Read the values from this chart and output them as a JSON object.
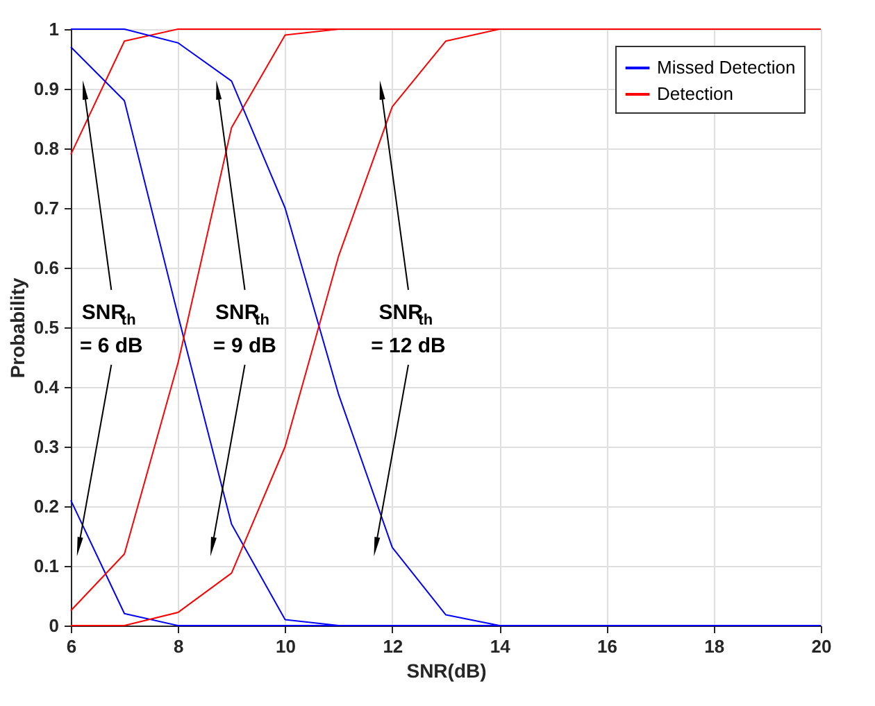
{
  "chart_data": {
    "type": "line",
    "xlabel": "SNR(dB)",
    "ylabel": "Probability",
    "x": [
      6,
      7,
      8,
      9,
      10,
      11,
      12,
      13,
      14,
      15,
      16,
      17,
      18,
      19,
      20
    ],
    "xlim": [
      6,
      20
    ],
    "xticks": [
      6,
      8,
      10,
      12,
      14,
      16,
      18,
      20
    ],
    "ylim": [
      0,
      1
    ],
    "yticks": [
      0,
      0.1,
      0.2,
      0.3,
      0.4,
      0.5,
      0.6,
      0.7,
      0.8,
      0.9,
      1
    ],
    "grid": true,
    "legend": "top right",
    "marker": "none",
    "line_style": "solid",
    "series": [
      {
        "name": "Missed Detection",
        "color": "#0000ff",
        "values": [
          0.21,
          0.02,
          0,
          0,
          0,
          0,
          0,
          0,
          0,
          0,
          0,
          0,
          0,
          0,
          0
        ]
      },
      {
        "name": "Detection",
        "color": "#ff0000",
        "values": [
          0.79,
          0.98,
          1,
          1,
          1,
          1,
          1,
          1,
          1,
          1,
          1,
          1,
          1,
          1,
          1
        ]
      },
      {
        "color": "#0000ff",
        "values": [
          0.97,
          0.88,
          0.52,
          0.17,
          0.01,
          0,
          0,
          0,
          0,
          0,
          0,
          0,
          0,
          0,
          0
        ]
      },
      {
        "color": "#ff0000",
        "values": [
          0.025,
          0.12,
          0.44,
          0.835,
          0.99,
          1,
          1,
          1,
          1,
          1,
          1,
          1,
          1,
          1,
          1
        ]
      },
      {
        "color": "#0000ff",
        "values": [
          1,
          1,
          0.977,
          0.913,
          0.7,
          0.387,
          0.131,
          0.018,
          0,
          0,
          0,
          0,
          0,
          0,
          0
        ]
      },
      {
        "color": "#ff0000",
        "values": [
          0,
          0,
          0.022,
          0.088,
          0.3,
          0.62,
          0.87,
          0.98,
          1,
          1,
          1,
          1,
          1,
          1,
          1
        ]
      }
    ],
    "annotations": [
      "SNR$_{th}$ = 6 dB",
      "SNR$_{th}$ = 9 dB",
      "SNR$_{th}$ = 12 dB"
    ]
  }
}
